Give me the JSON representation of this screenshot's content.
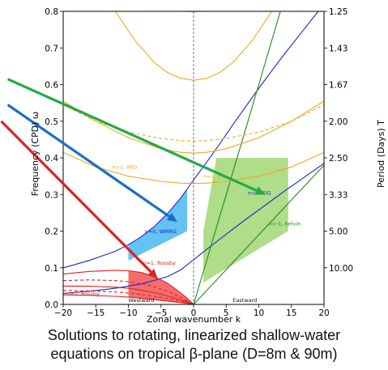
{
  "chart_data": {
    "type": "line",
    "xlabel": "Zonal wavenumber  k",
    "ylabel": "Frequency (CPD) ω",
    "ylabel_right": "Period (Days)  T",
    "xlim": [
      -20,
      20
    ],
    "ylim": [
      0.0,
      0.8
    ],
    "x_ticks": [
      -20,
      -15,
      -10,
      -5,
      0,
      5,
      10,
      15,
      20
    ],
    "x_tick_labels": [
      "−20",
      "−15",
      "−10",
      "−5",
      "0",
      "5",
      "10",
      "15",
      "20"
    ],
    "y_ticks": [
      0.0,
      0.1,
      0.2,
      0.3,
      0.4,
      0.5,
      0.6,
      0.7,
      0.8
    ],
    "y_tick_labels": [
      "0.0",
      "0.1",
      "0.2",
      "0.3",
      "0.4",
      "0.5",
      "0.6",
      "0.7",
      "0.8"
    ],
    "right_ticks": [
      {
        "omega": 0.8,
        "label": "1.25"
      },
      {
        "omega": 0.7,
        "label": "1.43"
      },
      {
        "omega": 0.6,
        "label": "1.67"
      },
      {
        "omega": 0.5,
        "label": "2.00"
      },
      {
        "omega": 0.4,
        "label": "2.50"
      },
      {
        "omega": 0.3,
        "label": "3.33"
      },
      {
        "omega": 0.2,
        "label": "5.00"
      },
      {
        "omega": 0.1,
        "label": "10.00"
      }
    ],
    "series": [
      {
        "name": "n=0, WMRG",
        "color": "#2222cc",
        "style": "solid",
        "x": [
          -20,
          -16,
          -12,
          -10,
          -8,
          -6,
          -4,
          -2,
          0,
          2,
          4,
          6,
          8,
          10,
          12,
          14,
          16,
          18,
          20
        ],
        "y": [
          0.1,
          0.12,
          0.145,
          0.163,
          0.185,
          0.213,
          0.248,
          0.29,
          0.34,
          0.388,
          0.438,
          0.49,
          0.54,
          0.59,
          0.638,
          0.685,
          0.73,
          0.775,
          0.82
        ]
      },
      {
        "name": "n=0, EIG",
        "color": "#2222cc",
        "style": "solid",
        "x": [
          -20,
          -16,
          -12,
          -8,
          -4,
          -2,
          0,
          2,
          4,
          6,
          8,
          10,
          12,
          14,
          16,
          18,
          20
        ],
        "y": [
          0.03,
          0.036,
          0.044,
          0.056,
          0.076,
          0.094,
          0.122,
          0.15,
          0.178,
          0.205,
          0.232,
          0.258,
          0.284,
          0.31,
          0.335,
          0.36,
          0.385
        ]
      },
      {
        "name": "n=-1, Kelvin",
        "color": "#228822",
        "style": "solid",
        "x": [
          0,
          5,
          10,
          13.3
        ],
        "y": [
          0.0,
          0.3,
          0.6,
          0.8
        ]
      },
      {
        "name": "n=-1, Kelvin",
        "color": "#228822",
        "style": "solid",
        "x": [
          0,
          5,
          10,
          15,
          20
        ],
        "y": [
          0.0,
          0.095,
          0.19,
          0.285,
          0.38
        ]
      },
      {
        "name": "n=1, WIG",
        "color": "#f0a820",
        "style": "solid",
        "x": [
          -20,
          -15,
          -10,
          -5,
          -2,
          0,
          2,
          5,
          10,
          15,
          20
        ],
        "y": [
          0.555,
          0.5,
          0.455,
          0.425,
          0.415,
          0.413,
          0.415,
          0.425,
          0.455,
          0.5,
          0.555
        ]
      },
      {
        "name": "n=1, WIG",
        "color": "#f0a820",
        "style": "dashed",
        "x": [
          -20,
          -15,
          -10,
          -5,
          -2,
          0,
          2,
          5,
          10,
          15,
          20
        ],
        "y": [
          0.545,
          0.5,
          0.47,
          0.453,
          0.447,
          0.446,
          0.447,
          0.453,
          0.47,
          0.5,
          0.545
        ]
      },
      {
        "name": "n=1, WIG",
        "color": "#f0a820",
        "style": "solid",
        "x": [
          -20,
          -15,
          -10,
          -5,
          -2,
          0,
          2,
          5,
          10,
          15,
          20
        ],
        "y": [
          0.415,
          0.375,
          0.35,
          0.336,
          0.331,
          0.33,
          0.331,
          0.336,
          0.35,
          0.375,
          0.415
        ]
      },
      {
        "name": "n=1, WIG",
        "color": "#f0a820",
        "style": "solid",
        "x": [
          -12,
          -9,
          -6,
          -4,
          -2,
          0,
          2,
          4,
          6,
          9,
          12
        ],
        "y": [
          0.8,
          0.72,
          0.66,
          0.633,
          0.617,
          0.612,
          0.617,
          0.633,
          0.66,
          0.72,
          0.8
        ]
      },
      {
        "name": "n=1, WIG",
        "color": "#f0a820",
        "style": "solid",
        "x": [
          -4,
          -3.5,
          -2,
          0,
          2,
          3.5,
          4
        ],
        "y": [
          0.815,
          0.805,
          0.8,
          0.799,
          0.8,
          0.805,
          0.815
        ]
      },
      {
        "name": "n=1, Rossby",
        "color": "#dd2222",
        "style": "solid",
        "x": [
          -20,
          -16,
          -12,
          -10,
          -8,
          -6,
          -4,
          -2,
          -1,
          0
        ],
        "y": [
          0.083,
          0.09,
          0.093,
          0.092,
          0.087,
          0.076,
          0.058,
          0.032,
          0.017,
          0.0
        ]
      },
      {
        "name": "n=1, Rossby",
        "color": "#dd2222",
        "style": "dashed",
        "x": [
          -20,
          -16,
          -12,
          -10,
          -8,
          -6,
          -4,
          -2,
          -1,
          0
        ],
        "y": [
          0.065,
          0.067,
          0.065,
          0.062,
          0.057,
          0.048,
          0.036,
          0.02,
          0.01,
          0.0
        ]
      },
      {
        "name": "n=2, Rossby",
        "color": "#dd2222",
        "style": "solid",
        "x": [
          -20,
          -16,
          -12,
          -10,
          -8,
          -6,
          -4,
          -2,
          -1,
          0
        ],
        "y": [
          0.05,
          0.05,
          0.047,
          0.044,
          0.039,
          0.032,
          0.023,
          0.013,
          0.007,
          0.0
        ]
      },
      {
        "name": "n=2, Rossby",
        "color": "#dd2222",
        "style": "dashed",
        "x": [
          -20,
          -16,
          -12,
          -10,
          -8,
          -6,
          -4,
          -2,
          -1,
          0
        ],
        "y": [
          0.038,
          0.037,
          0.034,
          0.031,
          0.027,
          0.022,
          0.016,
          0.009,
          0.005,
          0.0
        ]
      },
      {
        "name": "n=2, Rossby",
        "color": "#dd2222",
        "style": "solid",
        "x": [
          -20,
          -16,
          -12,
          -10,
          -8,
          -6,
          -4,
          -2,
          -1,
          0
        ],
        "y": [
          0.026,
          0.025,
          0.022,
          0.02,
          0.017,
          0.013,
          0.009,
          0.005,
          0.003,
          0.0
        ]
      }
    ],
    "shaded_regions": [
      {
        "name": "WMRG band",
        "color": "#3cb4f0",
        "upper_x": [
          -10,
          -8,
          -6,
          -4,
          -2,
          -1
        ],
        "upper_y": [
          0.163,
          0.185,
          0.213,
          0.248,
          0.29,
          0.315
        ],
        "lower_x": [
          -1,
          -10
        ],
        "lower_y": [
          0.2,
          0.12
        ]
      },
      {
        "name": "Kelvin band",
        "color": "#9bd46a",
        "upper_x": [
          3.5,
          13.3,
          14.5,
          14.5
        ],
        "upper_y": [
          0.4,
          0.4,
          0.4,
          0.2
        ],
        "lower_x": [
          14.5,
          1.5,
          1.5
        ],
        "lower_y": [
          0.2,
          0.06,
          0.2
        ]
      },
      {
        "name": "Rossby band",
        "color": "#f04848",
        "upper_x": [
          -10,
          -8,
          -6,
          -4,
          -2,
          -1,
          0
        ],
        "upper_y": [
          0.092,
          0.087,
          0.076,
          0.058,
          0.032,
          0.017,
          0.0
        ],
        "lower_x": [
          0,
          -10
        ],
        "lower_y": [
          0.0,
          0.02
        ]
      }
    ],
    "annotations": [
      {
        "text": "n=1, WIG",
        "x": -12.5,
        "y": 0.37,
        "color": "#f0a820"
      },
      {
        "text": "n=1, EIG",
        "x": 1.5,
        "y": 0.345,
        "color": "#f0a820"
      },
      {
        "text": "n=0, EIG",
        "x": 8.3,
        "y": 0.3,
        "color": "#2222cc"
      },
      {
        "text": "n=0, WMRG",
        "x": -7.5,
        "y": 0.195,
        "color": "#2222cc"
      },
      {
        "text": "n=-1, Kelvin",
        "x": 11.5,
        "y": 0.215,
        "color": "#228822"
      },
      {
        "text": "n=1, Rossby",
        "x": -7.8,
        "y": 0.108,
        "color": "#dd2222"
      },
      {
        "text": "n=2, Rossby",
        "x": -19.5,
        "y": 0.024,
        "color": "#dd2222"
      },
      {
        "text": "Westward",
        "x": -10,
        "y": 0.007,
        "color": "#111111"
      },
      {
        "text": "Eastward",
        "x": 6,
        "y": 0.007,
        "color": "#111111"
      }
    ],
    "arrows": [
      {
        "color": "#dd2222",
        "from": [
          -29.5,
          0.5
        ],
        "to": [
          -5.5,
          0.07
        ]
      },
      {
        "color": "#1a6fc4",
        "from": [
          -28.5,
          0.545
        ],
        "to": [
          -2.5,
          0.225
        ]
      },
      {
        "color": "#22aa44",
        "from": [
          -28.5,
          0.615
        ],
        "to": [
          11,
          0.3
        ]
      }
    ],
    "grid": false,
    "legend": "none",
    "zero_line": "dashed vertical at k=0"
  },
  "caption": {
    "line1": "Solutions to rotating, linearized shallow-water",
    "line2": "equations on tropical β-plane (D=8m & 90m)"
  }
}
